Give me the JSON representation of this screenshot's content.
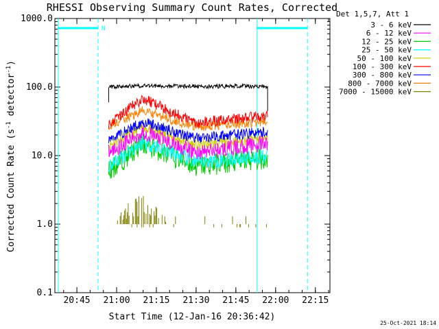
{
  "chart_data": {
    "type": "line",
    "title": "RHESSI Observing Summary Count Rates, Corrected",
    "xlabel": "Start Time (12-Jan-16 20:36:42)",
    "ylabel": "Corrected Count Rate (s⁻¹ detector⁻¹)",
    "ylabel_main": "Corrected Count Rate (s",
    "ylabel_sup1": "-1",
    "ylabel_mid": " detector",
    "ylabel_sup2": "-1",
    "ylabel_end": ")",
    "y_scale": "log",
    "ylim": [
      0.1,
      1000
    ],
    "xlim": [
      "20:36:42",
      "22:20:30"
    ],
    "x_ticks": [
      "20:45",
      "21:00",
      "21:15",
      "21:30",
      "21:45",
      "22:00",
      "22:15"
    ],
    "y_ticks": [
      "0.1",
      "1.0",
      "10.0",
      "100.0",
      "1000.0"
    ],
    "legend_header": "Det 1,5,7, Att 1",
    "legend_position": "top-right, outside plot",
    "series": [
      {
        "name": "3 - 6 keV",
        "color": "#000000",
        "x": [
          "20:57",
          "21:10",
          "21:30",
          "21:50",
          "21:57"
        ],
        "values": [
          100,
          105,
          102,
          103,
          102
        ]
      },
      {
        "name": "6 - 12 keV",
        "color": "#ff00ff",
        "x": [
          "20:57",
          "21:10",
          "21:30",
          "21:50",
          "21:57"
        ],
        "values": [
          11,
          22,
          11,
          14,
          15
        ]
      },
      {
        "name": "12 - 25 keV",
        "color": "#00cc00",
        "x": [
          "20:57",
          "21:10",
          "21:30",
          "21:50",
          "21:57"
        ],
        "values": [
          6,
          15,
          7,
          8.5,
          9
        ]
      },
      {
        "name": "25 - 50 keV",
        "color": "#00ffff",
        "x": [
          "20:57",
          "21:10",
          "21:30",
          "21:50",
          "21:57"
        ],
        "values": [
          7,
          16,
          8,
          9.5,
          10
        ]
      },
      {
        "name": "50 - 100 keV",
        "color": "#cccc00",
        "x": [
          "20:57",
          "21:10",
          "21:30",
          "21:50",
          "21:57"
        ],
        "values": [
          14,
          26,
          14,
          17,
          18
        ]
      },
      {
        "name": "100 - 300 keV",
        "color": "#ff0000",
        "x": [
          "20:57",
          "21:10",
          "21:30",
          "21:50",
          "21:57"
        ],
        "values": [
          29,
          68,
          30,
          36,
          38
        ]
      },
      {
        "name": "300 - 800 keV",
        "color": "#0000ff",
        "x": [
          "20:57",
          "21:10",
          "21:30",
          "21:50",
          "21:57"
        ],
        "values": [
          17,
          31,
          18,
          21,
          22
        ]
      },
      {
        "name": "800 - 7000 keV",
        "color": "#ff8000",
        "x": [
          "20:57",
          "21:10",
          "21:30",
          "21:50",
          "21:57"
        ],
        "values": [
          27,
          45,
          26,
          30,
          32
        ]
      },
      {
        "name": "7000 - 15000 keV",
        "color": "#808000",
        "x": [
          "21:00",
          "21:05",
          "21:10",
          "21:20",
          "21:50",
          "21:57"
        ],
        "values": [
          1.0,
          2.3,
          2.5,
          1.0,
          1.0,
          1.0
        ]
      }
    ],
    "annotations": [
      {
        "text": "N",
        "at_time": "20:53",
        "color": "#00ffff"
      }
    ],
    "cyan_markers": [
      "20:38",
      "20:53",
      "21:53",
      "22:12"
    ],
    "footer_timestamp": "25-Oct-2021 18:14"
  },
  "colors": {
    "background": "#000000",
    "foreground": "#ffffff",
    "axis_frame": "#000000",
    "marker": "#00ffff"
  }
}
